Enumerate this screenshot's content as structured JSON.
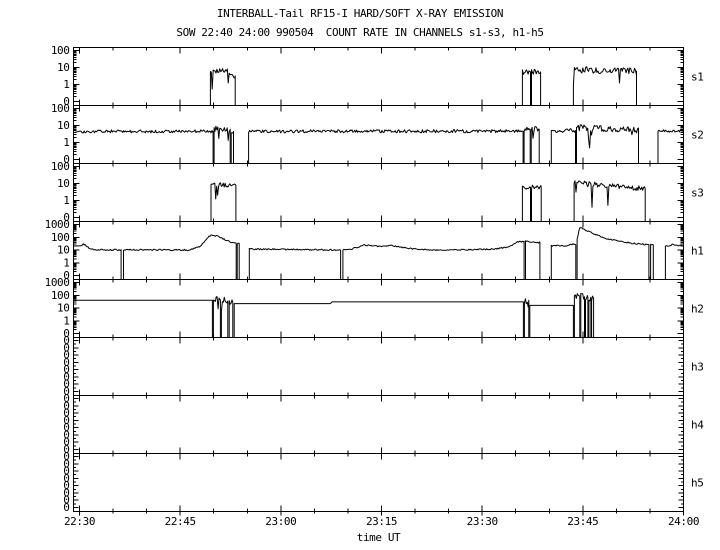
{
  "colors": {
    "foreground": "#000000",
    "background": "#ffffff"
  },
  "chart_data": {
    "type": "line",
    "title": "INTERBALL-Tail RF15-I HARD/SOFT X-RAY EMISSION",
    "subtitle": "SOW 22:40 24:00 990504  COUNT RATE IN CHANNELS s1-s3, h1-h5",
    "xlabel": "time UT",
    "x_axis": {
      "tick_labels": [
        "22:30",
        "22:45",
        "23:00",
        "23:15",
        "23:30",
        "23:45",
        "24:00"
      ],
      "minutes_range": [
        0,
        90
      ],
      "major_tick_every_min": 15,
      "minor_tick_every_min": 5
    },
    "y_scale": "log with zero floor",
    "panels": [
      {
        "id": "s1",
        "label": "s1",
        "top_exponent": 2,
        "y_tick_labels": [
          "100",
          "10",
          "1",
          "0"
        ],
        "segments": [
          {
            "t0": 19.5,
            "t1": 23.2,
            "noise": 0.17,
            "points": [
              [
                19.5,
                6
              ],
              [
                22.3,
                6
              ],
              [
                22.45,
                3.2
              ],
              [
                23.2,
                3.2
              ]
            ]
          },
          {
            "t0": 66.0,
            "t1": 67.2,
            "noise": 0.16,
            "points": [
              [
                66,
                5.5
              ],
              [
                67.2,
                5.5
              ]
            ]
          },
          {
            "t0": 67.35,
            "t1": 68.7,
            "noise": 0.16,
            "points": [
              [
                67.35,
                5.5
              ],
              [
                68.7,
                5.5
              ]
            ]
          },
          {
            "t0": 73.6,
            "t1": 83.0,
            "noise": 0.2,
            "points": [
              [
                73.6,
                7.5
              ],
              [
                83,
                6
              ]
            ]
          }
        ]
      },
      {
        "id": "s2",
        "label": "s2",
        "top_exponent": 2,
        "y_tick_labels": [
          "100",
          "10",
          "1",
          "0"
        ],
        "segments": [
          {
            "t0": 0,
            "t1": 19.9,
            "noise": 0.09,
            "points": [
              [
                0,
                4.5
              ],
              [
                19.9,
                4.5
              ]
            ]
          },
          {
            "t0": 20.05,
            "t1": 22.45,
            "noise": 0.16,
            "points": [
              [
                20.05,
                6.5
              ],
              [
                22.45,
                6
              ]
            ]
          },
          {
            "t0": 22.6,
            "t1": 22.95,
            "noise": 0.12,
            "points": [
              [
                22.6,
                4.5
              ],
              [
                22.95,
                4.5
              ]
            ]
          },
          {
            "t0": 25.2,
            "t1": 66.1,
            "noise": 0.09,
            "points": [
              [
                25.2,
                4.5
              ],
              [
                66.1,
                4.7
              ]
            ]
          },
          {
            "t0": 66.25,
            "t1": 67.15,
            "noise": 0.18,
            "points": [
              [
                66.25,
                6
              ],
              [
                67.15,
                6
              ]
            ]
          },
          {
            "t0": 67.3,
            "t1": 68.5,
            "noise": 0.18,
            "points": [
              [
                67.3,
                6
              ],
              [
                68.5,
                6
              ]
            ]
          },
          {
            "t0": 70.3,
            "t1": 73.9,
            "noise": 0.11,
            "points": [
              [
                70.3,
                5
              ],
              [
                73.9,
                5
              ]
            ]
          },
          {
            "t0": 74.05,
            "t1": 83.3,
            "noise": 0.18,
            "points": [
              [
                74.05,
                7.5
              ],
              [
                83.3,
                5.5
              ]
            ]
          },
          {
            "t0": 86.2,
            "t1": 90,
            "noise": 0.09,
            "points": [
              [
                86.2,
                4.5
              ],
              [
                90,
                5
              ]
            ]
          }
        ]
      },
      {
        "id": "s3",
        "label": "s3",
        "top_exponent": 2,
        "y_tick_labels": [
          "100",
          "10",
          "1",
          "0"
        ],
        "segments": [
          {
            "t0": 19.6,
            "t1": 23.3,
            "noise": 0.14,
            "points": [
              [
                19.6,
                9
              ],
              [
                20.15,
                9
              ],
              [
                20.3,
                1.3
              ],
              [
                20.5,
                9
              ],
              [
                23.3,
                7.5
              ]
            ]
          },
          {
            "t0": 66.0,
            "t1": 67.2,
            "noise": 0.14,
            "points": [
              [
                66,
                6
              ],
              [
                67.2,
                6
              ]
            ]
          },
          {
            "t0": 67.35,
            "t1": 68.8,
            "noise": 0.14,
            "points": [
              [
                67.35,
                6
              ],
              [
                68.8,
                6
              ]
            ]
          },
          {
            "t0": 73.7,
            "t1": 84.3,
            "noise": 0.17,
            "points": [
              [
                73.7,
                12
              ],
              [
                76,
                9
              ],
              [
                84.3,
                5
              ]
            ]
          }
        ]
      },
      {
        "id": "h1",
        "label": "h1",
        "top_exponent": 3,
        "y_tick_labels": [
          "1000",
          "100",
          "10",
          "1",
          "0"
        ],
        "segments": [
          {
            "t0": 0,
            "t1": 6.2,
            "noise": 0.06,
            "points": [
              [
                0,
                22
              ],
              [
                0.6,
                30
              ],
              [
                1.6,
                12
              ],
              [
                2.5,
                10.5
              ],
              [
                6.2,
                10.5
              ]
            ]
          },
          {
            "t0": 6.55,
            "t1": 23.35,
            "noise": 0.055,
            "points": [
              [
                6.55,
                10.5
              ],
              [
                16.5,
                10
              ],
              [
                18,
                20
              ],
              [
                19.2,
                110
              ],
              [
                19.9,
                160
              ],
              [
                20.7,
                110
              ],
              [
                21.8,
                60
              ],
              [
                22.8,
                38
              ],
              [
                23.35,
                34
              ]
            ]
          },
          {
            "t0": 23.5,
            "t1": 23.8,
            "noise": 0.05,
            "points": [
              [
                23.5,
                32
              ],
              [
                23.8,
                32
              ]
            ]
          },
          {
            "t0": 25.3,
            "t1": 38.9,
            "noise": 0.055,
            "points": [
              [
                25.3,
                12
              ],
              [
                38.9,
                10
              ]
            ]
          },
          {
            "t0": 39.25,
            "t1": 66.25,
            "noise": 0.05,
            "points": [
              [
                39.25,
                10
              ],
              [
                40.5,
                12
              ],
              [
                42.5,
                25
              ],
              [
                43.5,
                22
              ],
              [
                44.5,
                19
              ],
              [
                46.5,
                23
              ],
              [
                48,
                16
              ],
              [
                50,
                12
              ],
              [
                53,
                10
              ],
              [
                58,
                10.5
              ],
              [
                62,
                12
              ],
              [
                64,
                18
              ],
              [
                65.3,
                42
              ],
              [
                66.25,
                48
              ]
            ]
          },
          {
            "t0": 66.45,
            "t1": 68.6,
            "noise": 0.07,
            "points": [
              [
                66.45,
                48
              ],
              [
                68.6,
                40
              ]
            ]
          },
          {
            "t0": 70.3,
            "t1": 73.95,
            "noise": 0.055,
            "points": [
              [
                70.3,
                22
              ],
              [
                72.8,
                22
              ],
              [
                73.5,
                30
              ],
              [
                73.95,
                25
              ]
            ]
          },
          {
            "t0": 74.15,
            "t1": 84.85,
            "noise": 0.05,
            "points": [
              [
                74.15,
                70
              ],
              [
                74.55,
                600
              ],
              [
                75.6,
                330
              ],
              [
                77,
                150
              ],
              [
                78.5,
                80
              ],
              [
                80.5,
                48
              ],
              [
                82.5,
                33
              ],
              [
                84.85,
                26
              ]
            ]
          },
          {
            "t0": 85.1,
            "t1": 85.5,
            "noise": 0.05,
            "points": [
              [
                85.1,
                25
              ],
              [
                85.5,
                25
              ]
            ]
          },
          {
            "t0": 87.3,
            "t1": 90,
            "noise": 0.055,
            "points": [
              [
                87.3,
                20
              ],
              [
                88.6,
                27
              ],
              [
                90,
                20
              ]
            ]
          }
        ]
      },
      {
        "id": "h2",
        "label": "h2",
        "top_exponent": 3,
        "y_tick_labels": [
          "1000",
          "100",
          "10",
          "1",
          "0"
        ],
        "segments": [
          {
            "t0": 0,
            "t1": 19.8,
            "noise": 0,
            "points": [
              [
                0,
                40
              ],
              [
                19.8,
                40
              ]
            ]
          },
          {
            "t0": 19.95,
            "t1": 21.0,
            "noise": 0.28,
            "points": [
              [
                19.95,
                50
              ],
              [
                21,
                45
              ]
            ]
          },
          {
            "t0": 21.15,
            "t1": 22.1,
            "noise": 0.28,
            "points": [
              [
                21.15,
                40
              ],
              [
                22.1,
                35
              ]
            ]
          },
          {
            "t0": 22.3,
            "t1": 22.85,
            "noise": 0.25,
            "points": [
              [
                22.3,
                30
              ],
              [
                22.85,
                28
              ]
            ]
          },
          {
            "t0": 23.05,
            "t1": 66.15,
            "noise": 0,
            "points": [
              [
                23.05,
                22
              ],
              [
                37.4,
                22
              ],
              [
                37.6,
                30
              ],
              [
                66.15,
                30
              ]
            ]
          },
          {
            "t0": 66.3,
            "t1": 66.95,
            "noise": 0.3,
            "points": [
              [
                66.3,
                45
              ],
              [
                66.95,
                40
              ]
            ]
          },
          {
            "t0": 67.1,
            "t1": 73.6,
            "noise": 0,
            "points": [
              [
                67.1,
                16
              ],
              [
                73.6,
                16
              ]
            ]
          },
          {
            "t0": 73.75,
            "t1": 74.55,
            "noise": 0.27,
            "points": [
              [
                73.75,
                95
              ],
              [
                74.55,
                85
              ]
            ]
          },
          {
            "t0": 74.7,
            "t1": 75.25,
            "noise": 0.27,
            "points": [
              [
                74.7,
                80
              ],
              [
                75.25,
                75
              ]
            ]
          },
          {
            "t0": 75.4,
            "t1": 75.75,
            "noise": 0.27,
            "points": [
              [
                75.4,
                70
              ],
              [
                75.75,
                65
              ]
            ]
          },
          {
            "t0": 75.9,
            "t1": 76.2,
            "noise": 0.27,
            "points": [
              [
                75.9,
                65
              ],
              [
                76.2,
                60
              ]
            ]
          },
          {
            "t0": 76.3,
            "t1": 76.6,
            "noise": 0.27,
            "points": [
              [
                76.3,
                60
              ],
              [
                76.6,
                55
              ]
            ]
          }
        ]
      },
      {
        "id": "h3",
        "label": "h3",
        "top_exponent": null,
        "y_tick_labels": [
          "0",
          "0",
          "0",
          "0",
          "0",
          "0",
          "0",
          "0"
        ],
        "segments": []
      },
      {
        "id": "h4",
        "label": "h4",
        "top_exponent": null,
        "y_tick_labels": [
          "0",
          "0",
          "0",
          "0",
          "0",
          "0",
          "0",
          "0"
        ],
        "segments": []
      },
      {
        "id": "h5",
        "label": "h5",
        "top_exponent": null,
        "y_tick_labels": [
          "0",
          "0",
          "0",
          "0",
          "0",
          "0",
          "0",
          "0"
        ],
        "segments": []
      }
    ]
  }
}
